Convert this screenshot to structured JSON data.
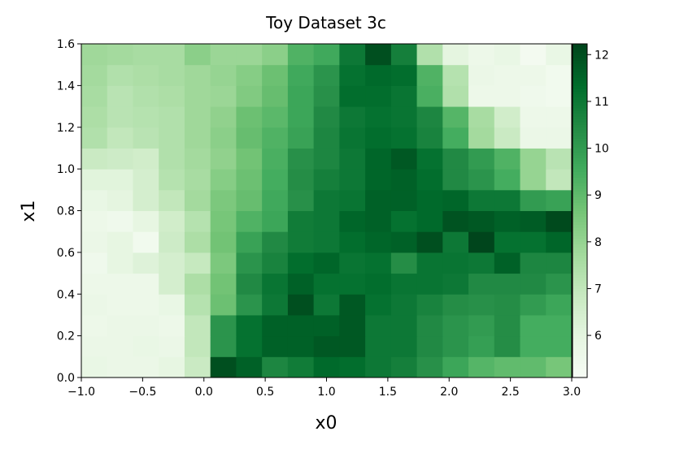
{
  "chart_data": {
    "type": "heatmap",
    "title": "Toy Dataset 3c",
    "xlabel": "x0",
    "ylabel": "x1",
    "xlim": [
      -1,
      3
    ],
    "ylim": [
      0,
      1.6
    ],
    "xticks": [
      {
        "value": -1,
        "label": "−1.0"
      },
      {
        "value": -0.5,
        "label": "−0.5"
      },
      {
        "value": 0,
        "label": "0.0"
      },
      {
        "value": 0.5,
        "label": "0.5"
      },
      {
        "value": 1,
        "label": "1.0"
      },
      {
        "value": 1.5,
        "label": "1.5"
      },
      {
        "value": 2,
        "label": "2.0"
      },
      {
        "value": 2.5,
        "label": "2.5"
      },
      {
        "value": 3,
        "label": "3.0"
      }
    ],
    "yticks": [
      {
        "value": 0,
        "label": "0.0"
      },
      {
        "value": 0.2,
        "label": "0.2"
      },
      {
        "value": 0.4,
        "label": "0.4"
      },
      {
        "value": 0.6,
        "label": "0.6"
      },
      {
        "value": 0.8,
        "label": "0.8"
      },
      {
        "value": 1,
        "label": "1.0"
      },
      {
        "value": 1.2,
        "label": "1.2"
      },
      {
        "value": 1.4,
        "label": "1.4"
      },
      {
        "value": 1.6,
        "label": "1.6"
      }
    ],
    "colormap": "Greens",
    "clim": [
      5.1,
      12.23
    ],
    "cticks": [
      6,
      7,
      8,
      9,
      10,
      11,
      12
    ],
    "values": [
      [
        5.8,
        5.7,
        5.7,
        5.9,
        6.8,
        12.0,
        11.6,
        10.6,
        10.9,
        11.4,
        11.3,
        11.0,
        10.8,
        10.3,
        9.7,
        9.2,
        9.0,
        9.0,
        8.6
      ],
      [
        5.7,
        5.7,
        5.8,
        5.7,
        7.0,
        10.2,
        11.2,
        11.6,
        11.6,
        11.8,
        11.8,
        11.0,
        11.0,
        10.5,
        10.2,
        9.9,
        10.4,
        9.5,
        9.5
      ],
      [
        5.6,
        5.7,
        5.7,
        5.6,
        7.0,
        10.2,
        11.2,
        11.6,
        11.6,
        11.6,
        11.8,
        11.0,
        11.0,
        10.5,
        10.2,
        10.0,
        10.4,
        9.5,
        9.5
      ],
      [
        5.7,
        5.6,
        5.6,
        5.8,
        7.3,
        8.8,
        10.2,
        11.0,
        12.0,
        11.0,
        11.8,
        11.2,
        11.0,
        10.7,
        10.4,
        10.3,
        10.4,
        10.0,
        9.7
      ],
      [
        5.6,
        5.6,
        5.6,
        6.5,
        7.5,
        8.7,
        10.5,
        11.1,
        11.6,
        11.2,
        11.2,
        11.3,
        11.1,
        11.1,
        11.0,
        10.5,
        10.5,
        10.5,
        10.2
      ],
      [
        5.5,
        5.9,
        6.2,
        6.5,
        6.9,
        8.5,
        10.2,
        10.7,
        11.3,
        11.5,
        11.1,
        11.2,
        10.4,
        11.1,
        11.1,
        11.0,
        11.6,
        10.6,
        10.6
      ],
      [
        5.7,
        5.9,
        5.4,
        6.7,
        7.5,
        8.7,
        9.8,
        10.5,
        10.9,
        11.0,
        11.3,
        11.5,
        11.6,
        12.0,
        11.0,
        12.2,
        11.2,
        11.2,
        11.5
      ],
      [
        5.6,
        5.5,
        5.9,
        6.6,
        7.3,
        8.6,
        9.3,
        9.7,
        10.9,
        11.0,
        11.5,
        11.6,
        11.2,
        11.4,
        11.9,
        11.8,
        11.6,
        11.7,
        12.1
      ],
      [
        5.8,
        6.0,
        6.5,
        7.0,
        7.7,
        8.5,
        8.9,
        9.6,
        10.3,
        11.0,
        11.1,
        11.6,
        11.6,
        11.4,
        11.5,
        11.0,
        11.0,
        10.0,
        9.8
      ],
      [
        6.1,
        6.1,
        6.5,
        7.3,
        7.6,
        8.3,
        8.8,
        9.5,
        10.4,
        10.8,
        11.0,
        11.5,
        11.6,
        11.3,
        10.5,
        10.2,
        9.5,
        8.0,
        7.0
      ],
      [
        6.8,
        6.7,
        6.6,
        7.4,
        7.7,
        8.1,
        8.7,
        9.4,
        10.3,
        10.6,
        11.0,
        11.5,
        11.8,
        11.2,
        10.5,
        10.0,
        9.3,
        8.0,
        7.2
      ],
      [
        7.4,
        7.0,
        7.2,
        7.4,
        7.8,
        8.2,
        8.9,
        9.3,
        9.8,
        10.6,
        11.1,
        11.3,
        11.2,
        10.7,
        9.5,
        7.7,
        6.8,
        5.7,
        5.7
      ],
      [
        7.5,
        7.2,
        7.3,
        7.4,
        7.8,
        8.1,
        8.8,
        9.1,
        9.7,
        10.5,
        11.0,
        11.2,
        11.1,
        10.6,
        9.2,
        7.6,
        6.6,
        5.6,
        5.6
      ],
      [
        7.6,
        7.2,
        7.4,
        7.5,
        7.8,
        7.9,
        8.4,
        8.9,
        9.7,
        10.3,
        11.3,
        11.3,
        11.1,
        9.4,
        7.4,
        5.6,
        5.6,
        5.5,
        5.4
      ],
      [
        7.7,
        7.4,
        7.5,
        7.6,
        7.8,
        8.0,
        8.3,
        8.8,
        9.6,
        10.2,
        11.2,
        11.4,
        11.3,
        9.3,
        7.3,
        5.7,
        5.6,
        5.6,
        5.4
      ],
      [
        7.8,
        7.7,
        7.6,
        7.6,
        8.2,
        7.9,
        7.9,
        8.2,
        9.3,
        9.6,
        11.0,
        12.0,
        10.8,
        7.4,
        6.0,
        5.6,
        5.8,
        5.3,
        5.8
      ]
    ]
  }
}
